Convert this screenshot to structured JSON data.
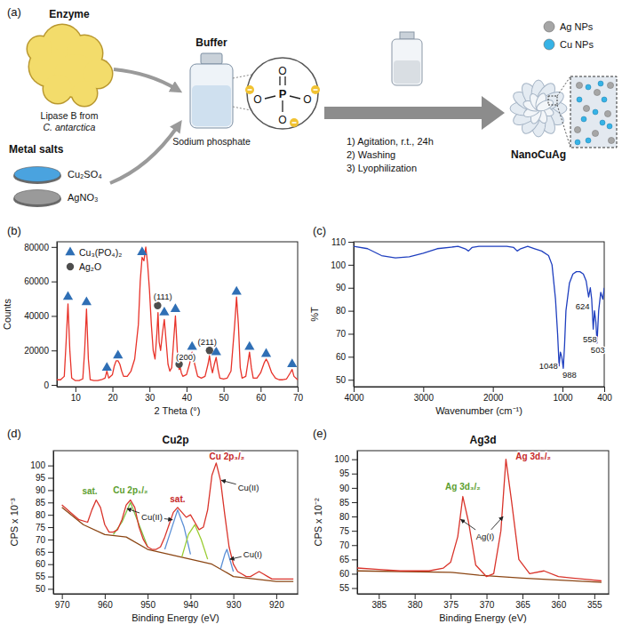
{
  "diagram": {
    "panel": "(a)",
    "enzyme": {
      "title": "Enzyme",
      "caption": [
        "Lipase B from",
        "C. antarctica"
      ]
    },
    "metal_salts": {
      "title": "Metal salts",
      "salts": [
        {
          "name": "Cu₂SO₄",
          "color": "#4aa3df"
        },
        {
          "name": "AgNO₃",
          "color": "#9a9a9a"
        }
      ]
    },
    "buffer": {
      "title": "Buffer",
      "caption": "Sodium phosphate",
      "phosphate": {
        "center": "P",
        "oxygens": [
          "O",
          "O",
          "O",
          "O"
        ]
      }
    },
    "steps": [
      "1) Agitation, r.t., 24h",
      "2) Washing",
      "3) Lyophilization"
    ],
    "product": {
      "title": "NanoCuAg",
      "legend": [
        {
          "name": "Ag NPs",
          "color": "#a6a6a6"
        },
        {
          "name": "Cu NPs",
          "color": "#36b3e6"
        }
      ]
    }
  },
  "chart_data": [
    {
      "panel": "(b)",
      "type": "line",
      "x_label": "2 Theta (°)",
      "y_label": "Counts",
      "xlim": [
        5,
        70
      ],
      "ylim": [
        -1000,
        83000
      ],
      "xticks": [
        10,
        20,
        30,
        40,
        50,
        60,
        70
      ],
      "yticks": [
        0,
        20000,
        40000,
        60000,
        80000
      ],
      "legend": "upper left",
      "series": [
        {
          "type": "line",
          "color": "#e8332a",
          "x": [
            5,
            6,
            7,
            7.5,
            8,
            8.5,
            9,
            10,
            11,
            12,
            12.5,
            13,
            13.5,
            14,
            15,
            16,
            17,
            18,
            18.5,
            19,
            20,
            20.5,
            21,
            21.5,
            22,
            22.5,
            23,
            24,
            25,
            26,
            27,
            27.5,
            28,
            28.5,
            29,
            29.5,
            30,
            30.5,
            31,
            31.5,
            32,
            32.3,
            32.6,
            33,
            33.5,
            34,
            34.5,
            35,
            35.5,
            36,
            36.5,
            37,
            37.5,
            38,
            38.3,
            38.6,
            39,
            40,
            40.8,
            41.5,
            42.2,
            43,
            44,
            45,
            45.8,
            46.2,
            46.6,
            47,
            47.5,
            48,
            48.5,
            49,
            50,
            51,
            52,
            53,
            53.5,
            54,
            54.5,
            55,
            56,
            56.5,
            57,
            57.5,
            58,
            59,
            60,
            61,
            61.5,
            62,
            63,
            64,
            65,
            66,
            67,
            68,
            68.5,
            69,
            70
          ],
          "values": [
            3000,
            3000,
            5000,
            25000,
            47000,
            20000,
            4000,
            2500,
            2500,
            3500,
            20000,
            44000,
            15000,
            3000,
            2500,
            2500,
            3000,
            4000,
            8000,
            4000,
            6000,
            11000,
            14000,
            14000,
            12000,
            8000,
            5000,
            5000,
            8000,
            15000,
            35000,
            60000,
            74000,
            72000,
            80000,
            70000,
            55000,
            35000,
            20000,
            15000,
            30000,
            42000,
            25000,
            20000,
            30000,
            38000,
            25000,
            12000,
            8000,
            10000,
            25000,
            40000,
            20000,
            9000,
            10000,
            7000,
            5000,
            6000,
            12000,
            19000,
            12000,
            5000,
            4000,
            5000,
            12000,
            17000,
            11000,
            7000,
            12000,
            16000,
            9000,
            4000,
            3500,
            4000,
            8000,
            35000,
            51000,
            35000,
            10000,
            4000,
            5000,
            12000,
            19000,
            10000,
            4000,
            4000,
            7000,
            13000,
            15000,
            13000,
            7000,
            4000,
            3000,
            3000,
            3500,
            7000,
            9000,
            5000,
            3000
          ]
        },
        {
          "type": "scatter",
          "name": "Cu₃(PO₄)₂",
          "color": "#2f6fb5",
          "marker": "triangle",
          "x": [
            8,
            13,
            18.5,
            21.5,
            28,
            34,
            37,
            41.5,
            48,
            53.5,
            57,
            61.5,
            68.5
          ],
          "values": [
            51000,
            48000,
            10000,
            17000,
            77000,
            42000,
            44000,
            22000,
            19000,
            54000,
            22000,
            18000,
            12000
          ]
        },
        {
          "type": "scatter",
          "name": "Ag₂O",
          "color": "#4d4d4d",
          "marker": "circle",
          "x": [
            32.2,
            38,
            46.2
          ],
          "values": [
            46000,
            12000,
            20000
          ]
        }
      ],
      "annotations": [
        {
          "text": "(111)",
          "x": 33.6,
          "y": 51000
        },
        {
          "text": "(200)",
          "x": 39.8,
          "y": 16000
        },
        {
          "text": "(211)",
          "x": 45.6,
          "y": 25000
        }
      ]
    },
    {
      "panel": "(c)",
      "type": "line",
      "x_label": "Wavenumber (cm⁻¹)",
      "y_label": "%T",
      "xlim": [
        4000,
        400
      ],
      "ylim": [
        47,
        110
      ],
      "xticks": [
        4000,
        3000,
        2000,
        1000,
        400
      ],
      "yticks": [
        50,
        60,
        70,
        80,
        90,
        100,
        110
      ],
      "series": [
        {
          "type": "line",
          "color": "#1f3fbf",
          "x": [
            4000,
            3800,
            3600,
            3400,
            3200,
            3000,
            2800,
            2500,
            2400,
            2350,
            2300,
            2200,
            2000,
            1800,
            1700,
            1650,
            1600,
            1500,
            1400,
            1300,
            1200,
            1150,
            1100,
            1070,
            1048,
            1030,
            1010,
            988,
            970,
            950,
            900,
            850,
            800,
            750,
            700,
            660,
            624,
            600,
            580,
            558,
            540,
            520,
            503,
            480,
            450,
            420,
            400
          ],
          "values": [
            108,
            107,
            104,
            103,
            103.5,
            105,
            107,
            108,
            107,
            106,
            107.5,
            108,
            108,
            108,
            107.5,
            106,
            107,
            108,
            107,
            106,
            104,
            100,
            85,
            70,
            56,
            62,
            60,
            55,
            65,
            80,
            92,
            96,
            97,
            97,
            96,
            93,
            86,
            90,
            85,
            72,
            80,
            75,
            66,
            80,
            88,
            85,
            90
          ]
        }
      ],
      "annotations": [
        {
          "text": "1048",
          "x": 1200,
          "y": 56
        },
        {
          "text": "988",
          "x": 900,
          "y": 52
        },
        {
          "text": "624",
          "x": 710,
          "y": 82
        },
        {
          "text": "558",
          "x": 605,
          "y": 67.5
        },
        {
          "text": "503",
          "x": 492,
          "y": 63
        }
      ]
    },
    {
      "panel": "(d)",
      "type": "line",
      "title": "Cu2p",
      "x_label": "Binding Energy (eV)",
      "y_label": "CPS x 10⁻³",
      "xlim": [
        972,
        915
      ],
      "ylim": [
        48,
        106
      ],
      "xticks": [
        970,
        960,
        950,
        940,
        930,
        920
      ],
      "yticks": [
        50,
        55,
        60,
        65,
        70,
        75,
        80,
        85,
        90,
        95,
        100
      ],
      "series": [
        {
          "type": "line",
          "color": "#8b4513",
          "x": [
            970,
            965,
            960,
            955,
            950,
            945,
            940,
            935,
            932,
            930,
            925,
            920,
            916
          ],
          "values": [
            83,
            76,
            72,
            71,
            66,
            64,
            62,
            60,
            57,
            55,
            54,
            53,
            53
          ]
        },
        {
          "type": "line",
          "color": "#7cc243",
          "x": [
            958,
            956,
            954,
            952,
            950
          ],
          "values": [
            72,
            77,
            85,
            76,
            67
          ]
        },
        {
          "type": "line",
          "color": "#5b8fd6",
          "x": [
            946,
            944.5,
            943,
            941.5,
            940
          ],
          "values": [
            66,
            74,
            82,
            75,
            64
          ]
        },
        {
          "type": "line",
          "color": "#9acd32",
          "x": [
            942,
            940.5,
            939,
            937.5,
            936
          ],
          "values": [
            63,
            72,
            76,
            70,
            62
          ]
        },
        {
          "type": "line",
          "color": "#5b8fd6",
          "x": [
            933,
            932,
            931.5,
            931,
            930
          ],
          "values": [
            58,
            64,
            66,
            63,
            57
          ]
        },
        {
          "type": "line",
          "color": "#d9342b",
          "x": [
            970,
            968,
            966,
            964,
            963,
            962,
            961,
            960,
            959,
            958,
            957,
            956,
            955,
            954,
            953,
            952,
            951,
            950,
            949,
            948,
            947,
            946,
            945,
            944,
            943,
            942,
            941,
            940,
            939,
            938,
            937,
            936,
            935,
            934,
            933,
            932,
            931,
            930,
            929,
            928,
            927,
            926,
            925,
            924,
            923,
            922,
            921,
            920,
            918,
            916
          ],
          "values": [
            84,
            81,
            78,
            77,
            82,
            86,
            83,
            76,
            73,
            73,
            74,
            78,
            84,
            86,
            83,
            75,
            70,
            67,
            66,
            66,
            67,
            71,
            76,
            81,
            83,
            81,
            79,
            80,
            77,
            74,
            75,
            82,
            96,
            101,
            94,
            80,
            67,
            60,
            57,
            56,
            55,
            55,
            56,
            57,
            56,
            55,
            54,
            54,
            54,
            54
          ]
        }
      ],
      "annotations": [
        {
          "text": "sat.",
          "x": 963.5,
          "y": 89.5,
          "color": "#5c9e2e"
        },
        {
          "text": "Cu 2p₁/₂",
          "x": 954,
          "y": 90,
          "color": "#5c9e2e"
        },
        {
          "text": "sat.",
          "x": 943,
          "y": 86.5,
          "color": "#c62828"
        },
        {
          "text": "Cu 2p₃/₂",
          "x": 931.5,
          "y": 103.5,
          "color": "#c62828"
        },
        {
          "text": "Cu(II)",
          "x": 949,
          "y": 79,
          "to": [
            [
              954.8,
              82.5
            ],
            [
              944.2,
              78
            ]
          ]
        },
        {
          "text": "Cu(II)",
          "x": 926.5,
          "y": 91,
          "to": [
            [
              932.8,
              94
            ]
          ]
        },
        {
          "text": "Cu(I)",
          "x": 925.5,
          "y": 64,
          "to": [
            [
              930.8,
              62
            ]
          ]
        }
      ]
    },
    {
      "panel": "(e)",
      "type": "line",
      "title": "Ag3d",
      "x_label": "Binding Energy (eV)",
      "y_label": "CPS x 10⁻²",
      "xlim": [
        388,
        353
      ],
      "ylim": [
        53,
        103
      ],
      "xticks": [
        385,
        380,
        375,
        370,
        365,
        360,
        355
      ],
      "yticks": [
        55,
        60,
        65,
        70,
        75,
        80,
        85,
        90,
        95,
        100
      ],
      "series": [
        {
          "type": "line",
          "color": "#8b4513",
          "x": [
            388,
            375,
            371,
            365,
            354
          ],
          "values": [
            61,
            60.5,
            59.5,
            58.5,
            57
          ]
        },
        {
          "type": "line",
          "color": "#d9342b",
          "x": [
            388,
            385,
            382,
            380,
            378,
            376,
            375,
            374,
            373.3,
            372.5,
            371.5,
            370,
            369,
            368,
            367.3,
            366.5,
            365.5,
            364,
            362,
            360,
            358,
            356,
            354
          ],
          "values": [
            62,
            61.5,
            61,
            61,
            61,
            62,
            64,
            73,
            87,
            78,
            63,
            59,
            60,
            75,
            100,
            85,
            65,
            60,
            61,
            59,
            58.5,
            58,
            57.5
          ]
        }
      ],
      "annotations": [
        {
          "text": "Ag 3d₃/₂",
          "x": 373.3,
          "y": 90.5,
          "color": "#5c9e2e"
        },
        {
          "text": "Ag 3d₅/₂",
          "x": 363.5,
          "y": 101,
          "color": "#c62828"
        },
        {
          "text": "Ag(I)",
          "x": 370.2,
          "y": 73,
          "to": [
            [
              373.6,
              79
            ],
            [
              367.7,
              80
            ]
          ]
        }
      ]
    }
  ]
}
